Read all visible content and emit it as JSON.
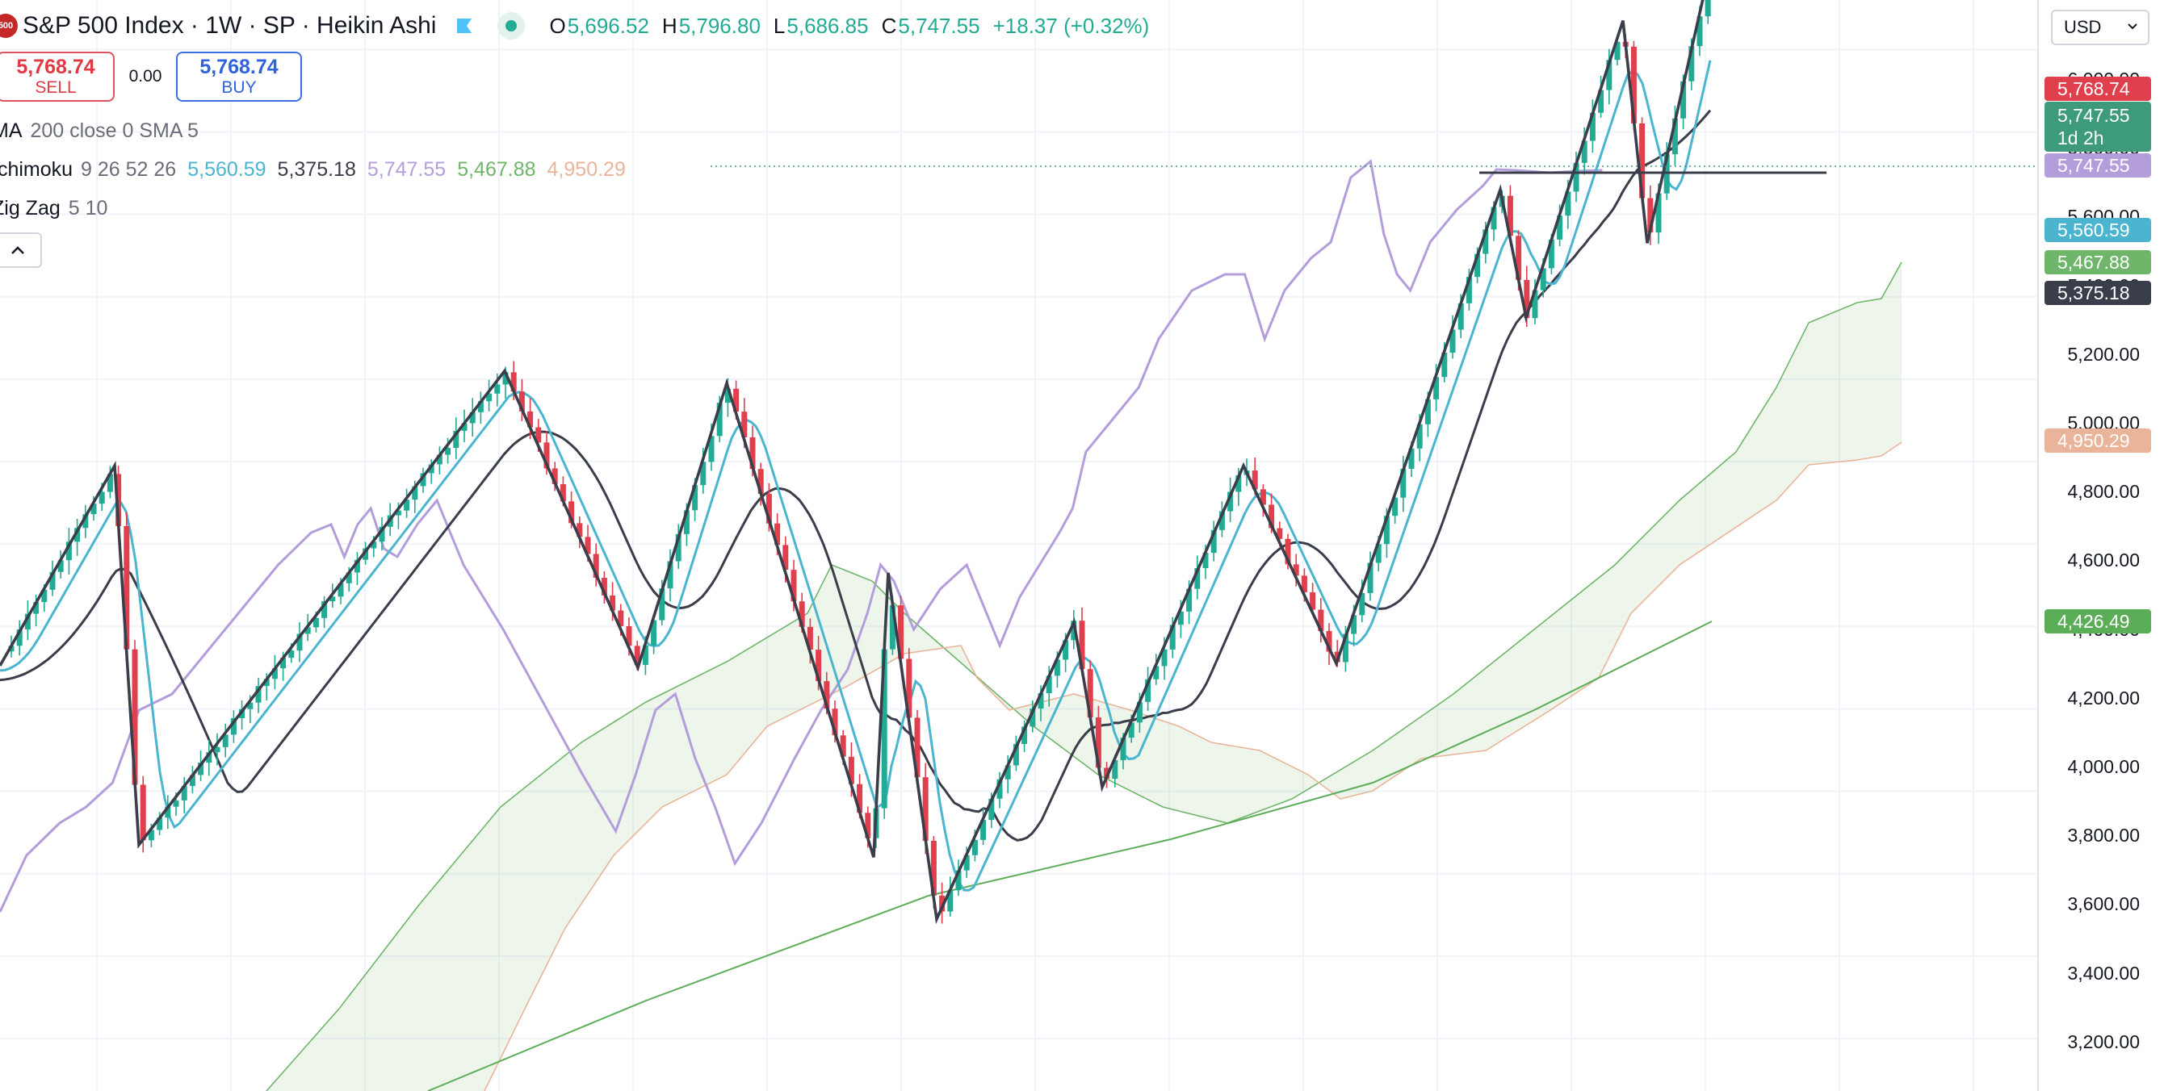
{
  "header": {
    "symbol_logo": "500",
    "title": "S&P 500 Index · 1W · SP  · Heikin Ashi",
    "ohlc": {
      "o_label": "O",
      "o": "5,696.52",
      "h_label": "H",
      "h": "5,796.80",
      "l_label": "L",
      "l": "5,686.85",
      "c_label": "C",
      "c": "5,747.55",
      "change": "+18.37 (+0.32%)"
    }
  },
  "trade": {
    "sell_price": "5,768.74",
    "sell_label": "SELL",
    "spread": "0.00",
    "buy_price": "5,768.74",
    "buy_label": "BUY"
  },
  "indicators": {
    "ma": {
      "name": "MA",
      "params": "200 close 0 SMA 5"
    },
    "ichimoku": {
      "name": "Ichimoku",
      "params": "9 26 52 26",
      "values": [
        "5,560.59",
        "5,375.18",
        "5,747.55",
        "5,467.88",
        "4,950.29"
      ]
    },
    "zigzag": {
      "name": "Zig Zag",
      "params": "5 10"
    }
  },
  "currency": "USD",
  "price_axis": {
    "ticks": [
      "6,000.00",
      "5,800.00",
      "5,600.00",
      "5,400.00",
      "5,200.00",
      "5,000.00",
      "4,800.00",
      "4,600.00",
      "4,400.00",
      "4,200.00",
      "4,000.00",
      "3,800.00",
      "3,600.00",
      "3,400.00",
      "3,200.00"
    ],
    "tags": [
      {
        "label": "5,768.74",
        "color": "#e0404e"
      },
      {
        "label": "5,747.55",
        "sub": "1d 2h",
        "color": "#3d9a7c"
      },
      {
        "label": "5,747.55",
        "color": "#b39ddb"
      },
      {
        "label": "5,560.59",
        "color": "#4bb5cf"
      },
      {
        "label": "5,467.88",
        "color": "#6fb56a"
      },
      {
        "label": "5,375.18",
        "color": "#3a3d4a"
      },
      {
        "label": "4,950.29",
        "color": "#e9b49a"
      },
      {
        "label": "4,426.49",
        "color": "#5cad57"
      }
    ]
  },
  "colors": {
    "up": "#22ab94",
    "down": "#e0404e",
    "tenkan": "#4bb5cf",
    "kijun": "#3a3d4a",
    "lagging": "#b39ddb",
    "span_a": "#6fb56a",
    "span_b": "#e9b49a",
    "ma": "#5cad57",
    "zigzag": "#3a3d4a"
  },
  "chart_data": {
    "type": "candlestick",
    "style": "Heikin Ashi",
    "interval": "1W",
    "y_range": [
      3080,
      6100
    ],
    "grid": true,
    "series": [
      {
        "name": "Zig Zag",
        "points": [
          4105,
          4590,
          3670,
          4820,
          4100,
          4790,
          3640,
          4330,
          3490,
          4210,
          3810,
          4590,
          4110,
          5260,
          4950,
          5670,
          5130,
          5800
        ]
      },
      {
        "name": "Ichimoku",
        "values": [
          "5,560.59",
          "5,375.18",
          "5,747.55",
          "5,467.88",
          "4,950.29"
        ]
      },
      {
        "name": "MA",
        "last": 4426.49
      }
    ]
  }
}
